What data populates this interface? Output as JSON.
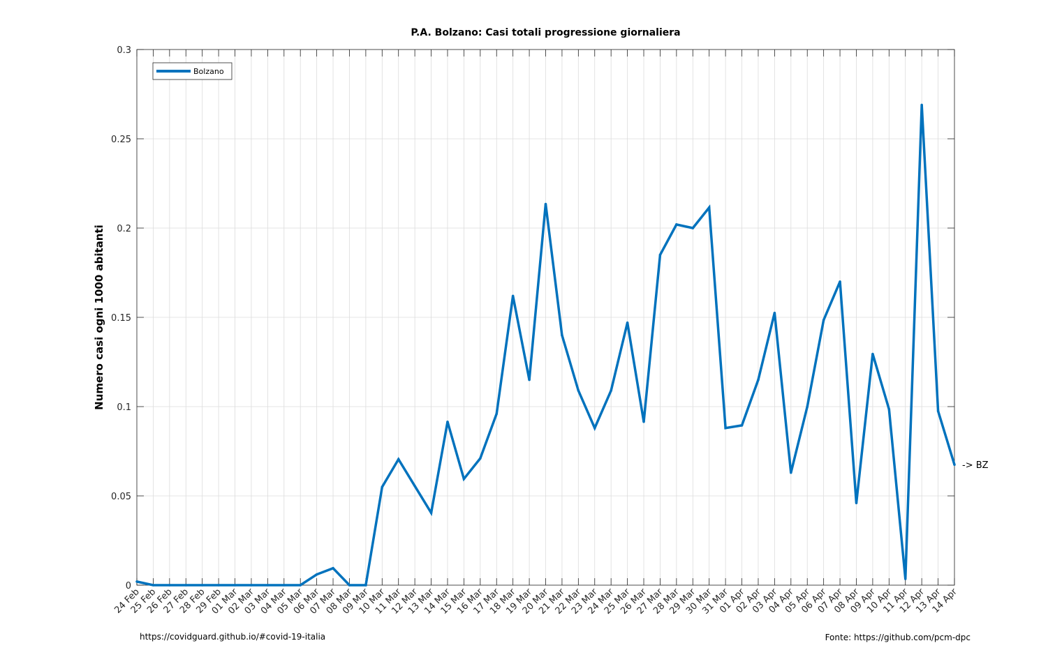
{
  "chart_data": {
    "type": "line",
    "title": "P.A. Bolzano: Casi totali progressione giornaliera",
    "xlabel": "",
    "ylabel": "Numero casi ogni 1000 abitanti",
    "ylim": [
      0,
      0.3
    ],
    "yticks": [
      0,
      0.05,
      0.1,
      0.15,
      0.2,
      0.25,
      0.3
    ],
    "ytick_labels": [
      "0",
      "0.05",
      "0.1",
      "0.15",
      "0.2",
      "0.25",
      "0.3"
    ],
    "grid": true,
    "legend_position": "top-left",
    "categories": [
      "24 Feb",
      "25 Feb",
      "26 Feb",
      "27 Feb",
      "28 Feb",
      "29 Feb",
      "01 Mar",
      "02 Mar",
      "03 Mar",
      "04 Mar",
      "05 Mar",
      "06 Mar",
      "07 Mar",
      "08 Mar",
      "09 Mar",
      "10 Mar",
      "11 Mar",
      "12 Mar",
      "13 Mar",
      "14 Mar",
      "15 Mar",
      "16 Mar",
      "17 Mar",
      "18 Mar",
      "19 Mar",
      "20 Mar",
      "21 Mar",
      "22 Mar",
      "23 Mar",
      "24 Mar",
      "25 Mar",
      "26 Mar",
      "27 Mar",
      "28 Mar",
      "29 Mar",
      "30 Mar",
      "31 Mar",
      "01 Apr",
      "02 Apr",
      "03 Apr",
      "04 Apr",
      "05 Apr",
      "06 Apr",
      "07 Apr",
      "08 Apr",
      "09 Apr",
      "10 Apr",
      "11 Apr",
      "12 Apr",
      "13 Apr",
      "14 Apr"
    ],
    "series": [
      {
        "name": "Bolzano",
        "color": "#0072BD",
        "values": [
          0.002,
          0,
          0,
          0,
          0,
          0,
          0,
          0,
          0,
          0,
          0,
          0.006,
          0.0095,
          0,
          0,
          0.055,
          0.0705,
          0.0555,
          0.0405,
          0.0915,
          0.0595,
          0.071,
          0.096,
          0.162,
          0.115,
          0.2135,
          0.14,
          0.109,
          0.088,
          0.109,
          0.147,
          0.0915,
          0.185,
          0.202,
          0.2,
          0.2115,
          0.088,
          0.0895,
          0.115,
          0.1525,
          0.063,
          0.1,
          0.1485,
          0.17,
          0.046,
          0.1295,
          0.0985,
          0.0035,
          0.269,
          0.0975,
          0.0675
        ]
      }
    ],
    "annotations": [
      {
        "text": "-> BZ",
        "x": "14 Apr",
        "y": 0.0675
      }
    ]
  },
  "footer": {
    "left": "https://covidguard.github.io/#covid-19-italia",
    "right": "Fonte: https://github.com/pcm-dpc"
  }
}
